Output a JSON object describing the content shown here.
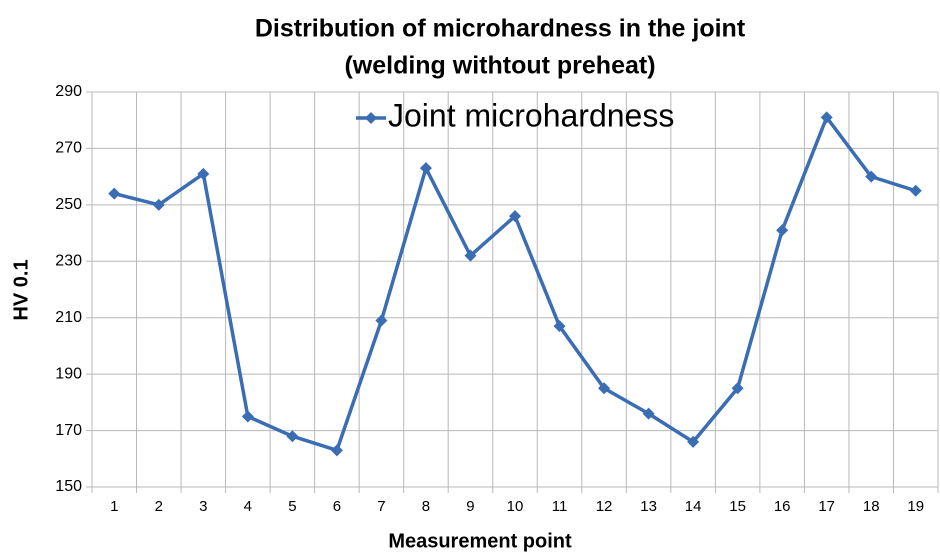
{
  "chart_data": {
    "type": "line",
    "title": [
      "Distribution of microhardness in the joint",
      "(welding withtout preheat)"
    ],
    "x_label": "Measurement point",
    "y_label": "HV 0.1",
    "categories": [
      "1",
      "2",
      "3",
      "4",
      "5",
      "6",
      "7",
      "8",
      "9",
      "10",
      "11",
      "12",
      "13",
      "14",
      "15",
      "16",
      "17",
      "18",
      "19"
    ],
    "series": [
      {
        "name": "Joint microhardness",
        "color": "#3a6db3",
        "values": [
          254,
          250,
          261,
          175,
          168,
          163,
          209,
          263,
          232,
          246,
          207,
          185,
          176,
          166,
          185,
          241,
          281,
          260,
          255
        ]
      }
    ],
    "ylim": [
      150,
      290
    ],
    "yticks": [
      150,
      170,
      190,
      210,
      230,
      250,
      270,
      290
    ],
    "grid": true,
    "legend": "top"
  }
}
